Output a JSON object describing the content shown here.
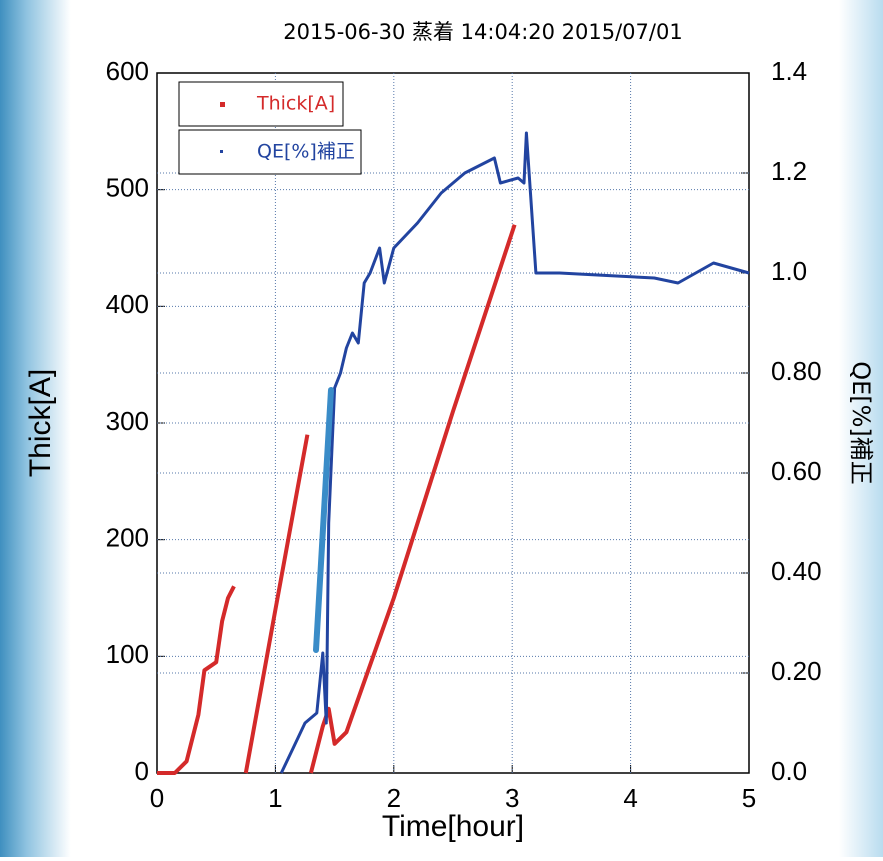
{
  "chart_data": {
    "type": "line",
    "title": "2015-06-30 蒸着 14:04:20  2015/07/01",
    "x_label": "Time[hour]",
    "y_label": "Thick[A]",
    "y2_label": "QE[%]補正",
    "xlim": [
      0,
      5
    ],
    "xticks": [
      0,
      1,
      2,
      3,
      4,
      5
    ],
    "ylim": [
      0,
      600
    ],
    "yticks": [
      0,
      100,
      200,
      300,
      400,
      500,
      600
    ],
    "y2lim": [
      0,
      1.4
    ],
    "y2ticks": [
      {
        "value": 0,
        "label": "0.0"
      },
      {
        "value": 0.2,
        "label": "0.20"
      },
      {
        "value": 0.4,
        "label": "0.40"
      },
      {
        "value": 0.6,
        "label": "0.60"
      },
      {
        "value": 0.8,
        "label": "0.80"
      },
      {
        "value": 1,
        "label": "1.0"
      },
      1.2,
      1.4
    ],
    "grid": true,
    "legend": "upper left",
    "series": [
      {
        "name": "Thick[A]",
        "color": "#d42a2a",
        "axis": "y",
        "x": [
          0,
          0.15,
          0.25,
          0.35,
          0.4,
          0.5,
          0.55,
          0.6,
          0.65,
          0.7,
          0.75,
          1.0,
          1.27,
          1.29,
          1.3,
          1.4,
          1.45,
          1.5,
          1.6,
          2.0,
          2.5,
          3.02
        ],
        "values": [
          0,
          0,
          10,
          50,
          88,
          95,
          130,
          150,
          160,
          null,
          0,
          140,
          290,
          null,
          0,
          40,
          55,
          25,
          35,
          150,
          310,
          470
        ]
      },
      {
        "name": "QE[%]補正",
        "color": "#2244a0",
        "axis": "y2",
        "x": [
          1.05,
          1.15,
          1.25,
          1.35,
          1.4,
          1.43,
          1.45,
          1.5,
          1.55,
          1.6,
          1.65,
          1.7,
          1.75,
          1.8,
          1.88,
          1.92,
          2.0,
          2.2,
          2.4,
          2.6,
          2.85,
          2.9,
          3.05,
          3.1,
          3.12,
          3.2,
          3.4,
          3.8,
          4.2,
          4.4,
          4.7,
          5.0
        ],
        "values": [
          0,
          0.05,
          0.1,
          0.12,
          0.24,
          0.1,
          0.5,
          0.77,
          0.8,
          0.85,
          0.88,
          0.86,
          0.98,
          1.0,
          1.05,
          0.98,
          1.05,
          1.1,
          1.16,
          1.2,
          1.23,
          1.18,
          1.19,
          1.18,
          1.28,
          1.0,
          1.0,
          0.995,
          0.99,
          0.98,
          1.02,
          1.0
        ]
      }
    ]
  }
}
